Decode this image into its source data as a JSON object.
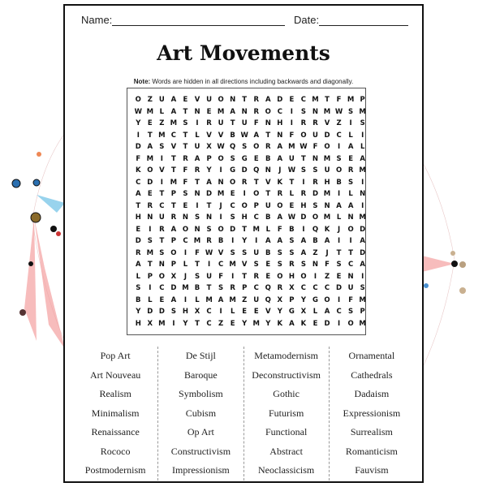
{
  "header": {
    "name_label": "Name:",
    "date_label": "Date:"
  },
  "title": "Art Movements",
  "note": {
    "bold": "Note:",
    "text": " Words are hidden in all directions including backwards and diagonally."
  },
  "grid": [
    "OZUAEVUONTRADECMTFMP",
    "WMLATNEMANROCISNMWSM",
    "YEZMSIRUTUFNHIRRVZIS",
    "ITMCTLVVBWATNFOUDCLI",
    "DASVTUXWQSORAMWFOIAL",
    "FMITRAPOSGEBAUTNMSEA",
    "KOVTFRYIGDQNJWSSUORM",
    "CDIMFTANORTVKTIRHBSI",
    "AETPSNDMEIOTRLRDMILN",
    "TRCTEITJCOPUOEHSNAAI",
    "HNURNSNISHCBAWDOMLNM",
    "EIRAONSODTMLFBIQKJOD",
    "DSTPCMRBIYIAASABAIIA",
    "RMSOIFWVSSUBSSAZJTTD",
    "ATNPLTICMVSESRSNFSCA",
    "LPOXJSUFITREOHOIZENI",
    "SICDMBTSRPCQRXCCCDUS",
    "BLEAILMAMZUQXPYGOIFM",
    "YDDSHXCILEEVYGXLACSP",
    "HXMIYTCZEYMYKAKEDIOM"
  ],
  "word_columns": [
    [
      "Pop Art",
      "Art Nouveau",
      "Realism",
      "Minimalism",
      "Renaissance",
      "Rococo",
      "Postmodernism"
    ],
    [
      "De Stijl",
      "Baroque",
      "Symbolism",
      "Cubism",
      "Op Art",
      "Constructivism",
      "Impressionism"
    ],
    [
      "Metamodernism",
      "Deconstructivism",
      "Gothic",
      "Futurism",
      "Functional",
      "Abstract",
      "Neoclassicism"
    ],
    [
      "Ornamental",
      "Cathedrals",
      "Dadaism",
      "Expressionism",
      "Surrealism",
      "Romanticism",
      "Fauvism"
    ]
  ]
}
